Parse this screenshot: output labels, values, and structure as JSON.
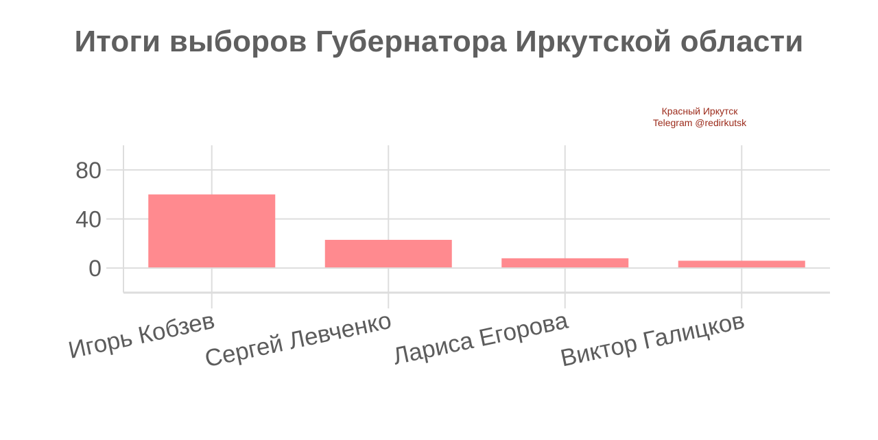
{
  "chart_data": {
    "type": "bar",
    "title": "Итоги выборов Губернатора Иркутской области",
    "categories": [
      "Игорь Кобзев",
      "Сергей Левченко",
      "Лариса Егорова",
      "Виктор Галицков"
    ],
    "values": [
      60,
      23,
      8,
      6
    ],
    "yticks": [
      0,
      40,
      80
    ],
    "ylim": [
      -20,
      100
    ],
    "xlabel": "",
    "ylabel": "",
    "grid": true,
    "legend": "none",
    "bar_color": "#ff8a8f",
    "grid_color": "#dddddd"
  },
  "watermark": {
    "line1": "Красный Иркутск",
    "line2": "Telegram @redirkutsk"
  }
}
